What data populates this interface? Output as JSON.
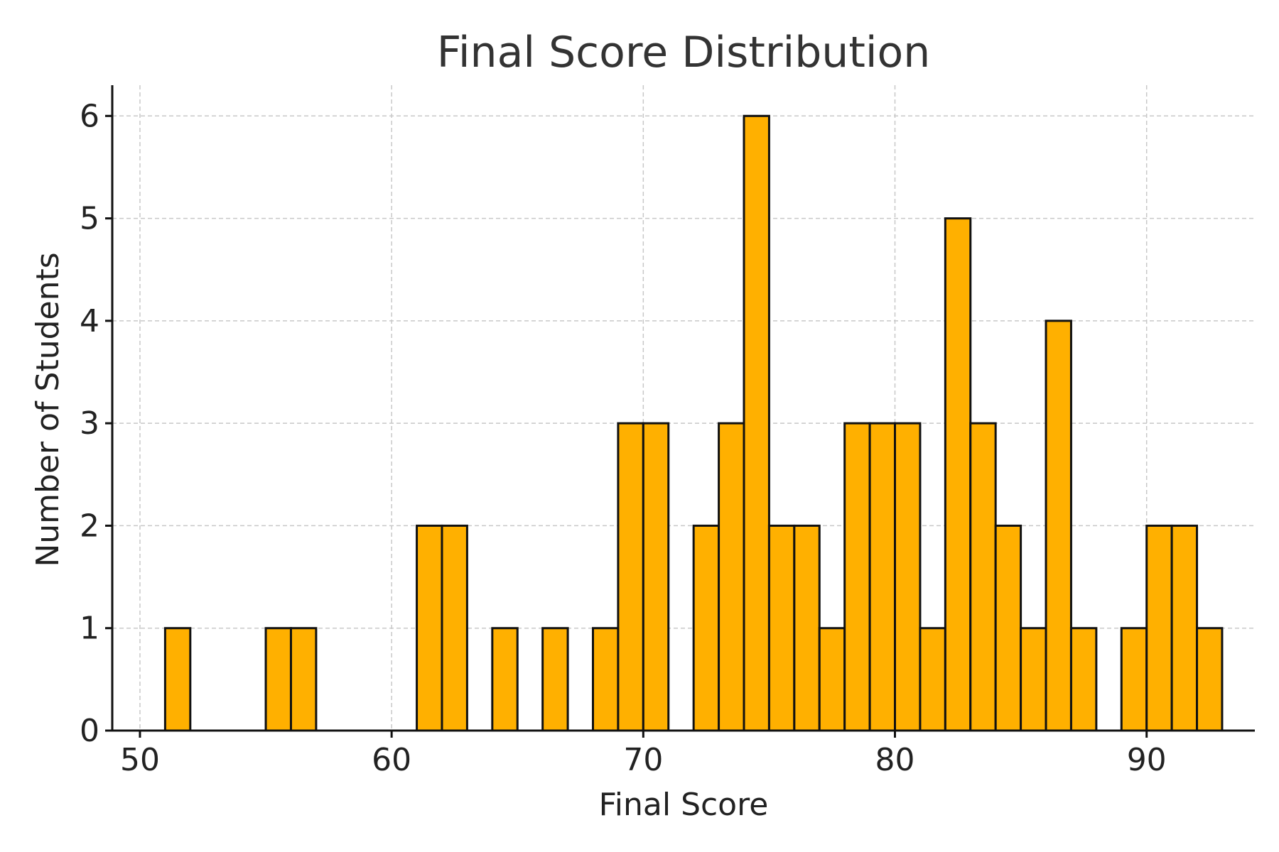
{
  "chart_data": {
    "type": "bar",
    "title": "Final Score Distribution",
    "xlabel": "Final Score",
    "ylabel": "Number of Students",
    "xlim": [
      48.9,
      94.3
    ],
    "ylim": [
      0,
      6.3
    ],
    "xticks": [
      50,
      60,
      70,
      80,
      90
    ],
    "yticks": [
      0,
      1,
      2,
      3,
      4,
      5,
      6
    ],
    "grid": true,
    "bar_color": "#FFB000",
    "edge_color": "#111111",
    "bins": [
      {
        "start": 51,
        "end": 52,
        "count": 1
      },
      {
        "start": 55,
        "end": 56,
        "count": 1
      },
      {
        "start": 56,
        "end": 57,
        "count": 1
      },
      {
        "start": 61,
        "end": 62,
        "count": 2
      },
      {
        "start": 62,
        "end": 63,
        "count": 2
      },
      {
        "start": 64,
        "end": 65,
        "count": 1
      },
      {
        "start": 66,
        "end": 67,
        "count": 1
      },
      {
        "start": 68,
        "end": 69,
        "count": 1
      },
      {
        "start": 69,
        "end": 70,
        "count": 3
      },
      {
        "start": 70,
        "end": 71,
        "count": 3
      },
      {
        "start": 72,
        "end": 73,
        "count": 2
      },
      {
        "start": 73,
        "end": 74,
        "count": 3
      },
      {
        "start": 74,
        "end": 75,
        "count": 6
      },
      {
        "start": 75,
        "end": 76,
        "count": 2
      },
      {
        "start": 76,
        "end": 77,
        "count": 2
      },
      {
        "start": 77,
        "end": 78,
        "count": 1
      },
      {
        "start": 78,
        "end": 79,
        "count": 3
      },
      {
        "start": 79,
        "end": 80,
        "count": 3
      },
      {
        "start": 80,
        "end": 81,
        "count": 3
      },
      {
        "start": 81,
        "end": 82,
        "count": 1
      },
      {
        "start": 82,
        "end": 83,
        "count": 5
      },
      {
        "start": 83,
        "end": 84,
        "count": 3
      },
      {
        "start": 84,
        "end": 85,
        "count": 2
      },
      {
        "start": 85,
        "end": 86,
        "count": 1
      },
      {
        "start": 86,
        "end": 87,
        "count": 4
      },
      {
        "start": 87,
        "end": 88,
        "count": 1
      },
      {
        "start": 89,
        "end": 90,
        "count": 1
      },
      {
        "start": 90,
        "end": 91,
        "count": 2
      },
      {
        "start": 91,
        "end": 92,
        "count": 2
      },
      {
        "start": 92,
        "end": 93,
        "count": 1
      }
    ]
  }
}
